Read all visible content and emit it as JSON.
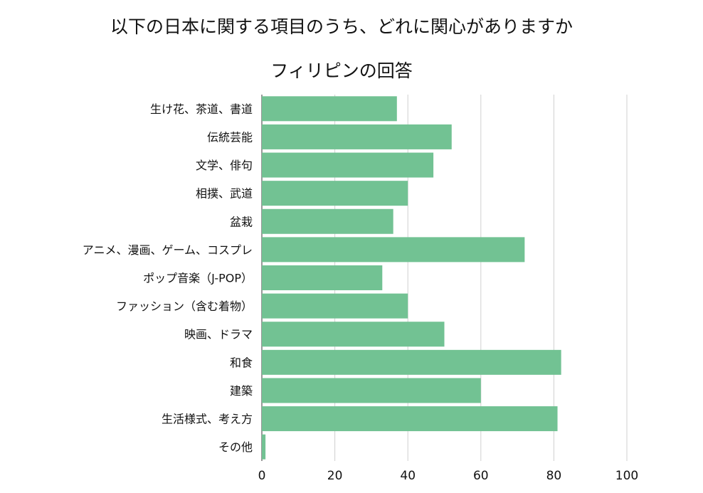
{
  "chart_data": {
    "type": "bar",
    "orientation": "horizontal",
    "title": "以下の日本に関する項目のうち、どれに関心がありますか",
    "subtitle": "フィリピンの回答",
    "categories": [
      "生け花、茶道、書道",
      "伝統芸能",
      "文学、俳句",
      "相撲、武道",
      "盆栽",
      "アニメ、漫画、ゲーム、コスプレ",
      "ポップ音楽（J-POP）",
      "ファッション（含む着物）",
      "映画、ドラマ",
      "和食",
      "建築",
      "生活様式、考え方",
      "その他"
    ],
    "values": [
      37,
      52,
      47,
      40,
      36,
      72,
      33,
      40,
      50,
      82,
      60,
      81,
      1
    ],
    "xlim": [
      0,
      100
    ],
    "xticks": [
      "0",
      "20",
      "40",
      "60",
      "80",
      "100"
    ],
    "grid": true,
    "bar_color": "#72c293",
    "grid_color": "#d0d0d0"
  }
}
